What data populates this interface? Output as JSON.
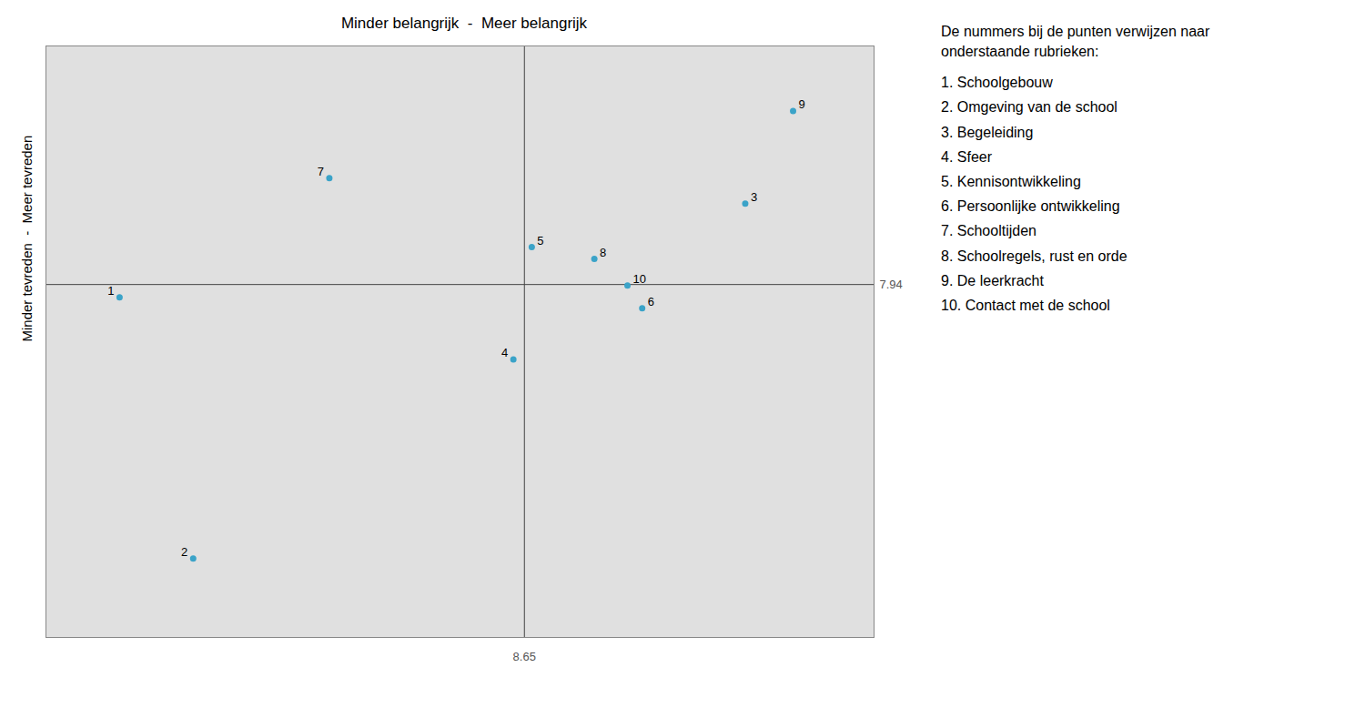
{
  "chart_data": {
    "type": "scatter",
    "title": "Minder belangrijk  -  Meer belangrijk",
    "ylabel": "Minder tevreden  -  Meer tevreden",
    "x": [
      7.55,
      7.75,
      9.25,
      8.62,
      8.67,
      8.97,
      8.12,
      8.84,
      9.38,
      8.93
    ],
    "y": [
      7.875,
      6.55,
      8.35,
      7.56,
      8.13,
      7.82,
      8.48,
      8.07,
      8.82,
      7.935
    ],
    "point_labels": [
      1,
      2,
      3,
      4,
      5,
      6,
      7,
      8,
      9,
      10
    ],
    "color": "#3ba3c8",
    "background_color": "#e0e0e0",
    "reference_lines": {
      "x": 8.65,
      "y": 7.94
    },
    "xlim": [
      7.35,
      9.6
    ],
    "ylim": [
      6.15,
      9.15
    ],
    "tick_labels": false,
    "grid": false,
    "notes": [
      "De nummers bij de punten verwijzen naar",
      "onderstaande rubrieken:",
      "1. Schoolgebouw",
      "2. Omgeving van de school",
      "3. Begeleiding",
      "4. Sfeer",
      "5. Kennisontwikkeling",
      "6. Persoonlijke ontwikkeling",
      "7. Schooltijden",
      "8. Schoolregels, rust en orde",
      "9. De leerkracht",
      "10. Contact met de school"
    ]
  }
}
